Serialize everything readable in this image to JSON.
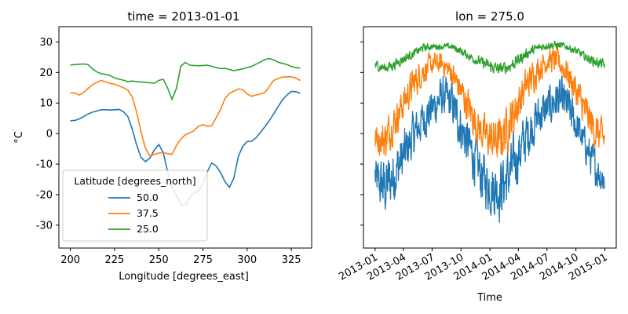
{
  "chart_data": [
    {
      "type": "line",
      "title": "time = 2013-01-01",
      "xlabel": "Longitude [degrees_east]",
      "ylabel": "°C",
      "xlim": [
        193.5,
        336.5
      ],
      "ylim": [
        -37.5,
        35
      ],
      "xticks": [
        200,
        225,
        250,
        275,
        300,
        325
      ],
      "yticks": [
        -30,
        -20,
        -10,
        0,
        10,
        20,
        30
      ],
      "grid": false,
      "legend": {
        "title": "Latitude [degrees_north]",
        "placement": "lower-left"
      },
      "x": [
        200,
        202.5,
        205,
        207.5,
        210,
        212.5,
        215,
        217.5,
        220,
        222.5,
        225,
        227.5,
        230,
        232.5,
        235,
        237.5,
        240,
        242.5,
        245,
        247.5,
        250,
        252.5,
        255,
        257.5,
        260,
        262.5,
        265,
        267.5,
        270,
        272.5,
        275,
        277.5,
        280,
        282.5,
        285,
        287.5,
        290,
        292.5,
        295,
        297.5,
        300,
        302.5,
        305,
        307.5,
        310,
        312.5,
        315,
        317.5,
        320,
        322.5,
        325,
        327.5,
        330
      ],
      "series": [
        {
          "name": "50.0",
          "color": "#1f77b4",
          "values": [
            4.2,
            4.3,
            4.8,
            5.6,
            6.4,
            7.0,
            7.4,
            7.8,
            7.8,
            7.7,
            7.8,
            7.9,
            7.2,
            5.6,
            1.5,
            -3.8,
            -7.8,
            -9.2,
            -8.0,
            -5.4,
            -3.6,
            -6.2,
            -12.5,
            -17.6,
            -20.2,
            -23.2,
            -23.6,
            -21.0,
            -19.4,
            -18.8,
            -16.4,
            -12.5,
            -9.6,
            -10.6,
            -12.8,
            -15.8,
            -17.6,
            -14.6,
            -7.5,
            -4.2,
            -2.6,
            -2.5,
            -1.4,
            0.4,
            2.2,
            4.2,
            6.4,
            8.8,
            11.0,
            12.6,
            13.8,
            13.7,
            13.2
          ]
        },
        {
          "name": "37.5",
          "color": "#ff7f0e",
          "values": [
            13.4,
            13.3,
            12.6,
            13.4,
            14.8,
            16.0,
            16.8,
            17.4,
            16.9,
            16.4,
            16.2,
            15.6,
            15.0,
            14.2,
            12.0,
            7.0,
            0.5,
            -4.8,
            -7.4,
            -6.8,
            -6.4,
            -6.2,
            -6.6,
            -6.8,
            -4.0,
            -1.8,
            -0.4,
            0.2,
            1.0,
            2.4,
            2.9,
            2.4,
            2.6,
            5.2,
            8.0,
            11.5,
            13.2,
            13.9,
            14.6,
            14.4,
            13.0,
            12.2,
            12.6,
            13.0,
            13.4,
            15.4,
            17.4,
            18.0,
            18.5,
            18.6,
            18.6,
            18.2,
            17.4
          ]
        },
        {
          "name": "25.0",
          "color": "#2ca02c",
          "values": [
            22.4,
            22.6,
            22.7,
            22.8,
            22.6,
            21.2,
            20.2,
            19.6,
            19.4,
            19.0,
            18.2,
            17.8,
            17.5,
            17.0,
            17.2,
            17.0,
            16.9,
            16.8,
            16.6,
            16.5,
            17.4,
            17.8,
            15.0,
            11.2,
            14.8,
            22.1,
            23.3,
            22.4,
            22.3,
            22.2,
            22.3,
            22.4,
            22.0,
            21.6,
            21.3,
            21.4,
            21.0,
            20.6,
            20.9,
            21.2,
            21.6,
            22.0,
            22.7,
            23.4,
            24.2,
            24.6,
            24.1,
            23.4,
            23.0,
            22.6,
            22.0,
            21.6,
            21.4
          ]
        }
      ]
    },
    {
      "type": "line",
      "title": "lon = 275.0",
      "xlabel": "Time",
      "ylabel": "",
      "xlim": [
        "2012-11-25",
        "2015-02-06"
      ],
      "ylim": [
        -37.5,
        35
      ],
      "xticks": [
        "2013-01",
        "2013-04",
        "2013-07",
        "2013-10",
        "2014-01",
        "2014-04",
        "2014-07",
        "2014-10",
        "2015-01"
      ],
      "yticks": [
        -30,
        -20,
        -10,
        0,
        10,
        20,
        30
      ],
      "shared_y_with": "time = 2013-01-01",
      "grid": false,
      "date_range": [
        "2013-01-01",
        "2014-12-31"
      ],
      "series": [
        {
          "name": "50.0",
          "color": "#1f77b4",
          "envelope": {
            "dates": [
              "2013-01-01",
              "2013-02-01",
              "2013-03-01",
              "2013-04-01",
              "2013-05-01",
              "2013-06-01",
              "2013-07-01",
              "2013-08-01",
              "2013-09-01",
              "2013-10-01",
              "2013-11-01",
              "2013-12-01",
              "2014-01-01",
              "2014-02-01",
              "2014-03-01",
              "2014-04-01",
              "2014-05-01",
              "2014-06-01",
              "2014-07-01",
              "2014-08-01",
              "2014-09-01",
              "2014-10-01",
              "2014-11-01",
              "2014-12-01",
              "2014-12-31"
            ],
            "low": [
              -25,
              -33,
              -27,
              -20,
              -12,
              -5,
              -2,
              2,
              0,
              -10,
              -17,
              -26,
              -30,
              -33,
              -28,
              -20,
              -12,
              -5,
              -2,
              1,
              -1,
              -6,
              -12,
              -20,
              -24
            ],
            "high": [
              -5,
              -3,
              0,
              5,
              10,
              14,
              18,
              22,
              20,
              14,
              6,
              0,
              -5,
              -3,
              0,
              6,
              12,
              16,
              18,
              22,
              20,
              12,
              4,
              -2,
              -6
            ]
          }
        },
        {
          "name": "37.5",
          "color": "#ff7f0e",
          "envelope": {
            "dates": [
              "2013-01-01",
              "2013-02-01",
              "2013-03-01",
              "2013-04-01",
              "2013-05-01",
              "2013-06-01",
              "2013-07-01",
              "2013-08-01",
              "2013-09-01",
              "2013-10-01",
              "2013-11-01",
              "2013-12-01",
              "2014-01-01",
              "2014-02-01",
              "2014-03-01",
              "2014-04-01",
              "2014-05-01",
              "2014-06-01",
              "2014-07-01",
              "2014-08-01",
              "2014-09-01",
              "2014-10-01",
              "2014-11-01",
              "2014-12-01",
              "2014-12-31"
            ],
            "low": [
              -8,
              -12,
              -5,
              2,
              8,
              14,
              17,
              18,
              14,
              6,
              -2,
              -8,
              -12,
              -14,
              -8,
              0,
              8,
              14,
              18,
              18,
              14,
              6,
              -2,
              -8,
              -10
            ],
            "high": [
              5,
              8,
              12,
              18,
              24,
              27,
              28,
              28,
              26,
              22,
              16,
              10,
              8,
              9,
              14,
              20,
              25,
              28,
              30,
              30,
              27,
              22,
              16,
              10,
              6
            ]
          }
        },
        {
          "name": "25.0",
          "color": "#2ca02c",
          "envelope": {
            "dates": [
              "2013-01-01",
              "2013-02-01",
              "2013-03-01",
              "2013-04-01",
              "2013-05-01",
              "2013-06-01",
              "2013-07-01",
              "2013-08-01",
              "2013-09-01",
              "2013-10-01",
              "2013-11-01",
              "2013-12-01",
              "2014-01-01",
              "2014-02-01",
              "2014-03-01",
              "2014-04-01",
              "2014-05-01",
              "2014-06-01",
              "2014-07-01",
              "2014-08-01",
              "2014-09-01",
              "2014-10-01",
              "2014-11-01",
              "2014-12-01",
              "2014-12-31"
            ],
            "low": [
              20,
              19,
              20,
              22,
              24,
              26,
              27,
              27,
              27,
              25,
              23,
              21,
              19,
              18,
              19,
              21,
              24,
              26,
              27,
              27,
              27,
              25,
              23,
              21,
              20
            ],
            "high": [
              25,
              24,
              25,
              27,
              28,
              30,
              30,
              30,
              30,
              29,
              27,
              26,
              25,
              24,
              25,
              27,
              29,
              30,
              31,
              31,
              30,
              29,
              27,
              26,
              25
            ]
          }
        }
      ]
    }
  ]
}
